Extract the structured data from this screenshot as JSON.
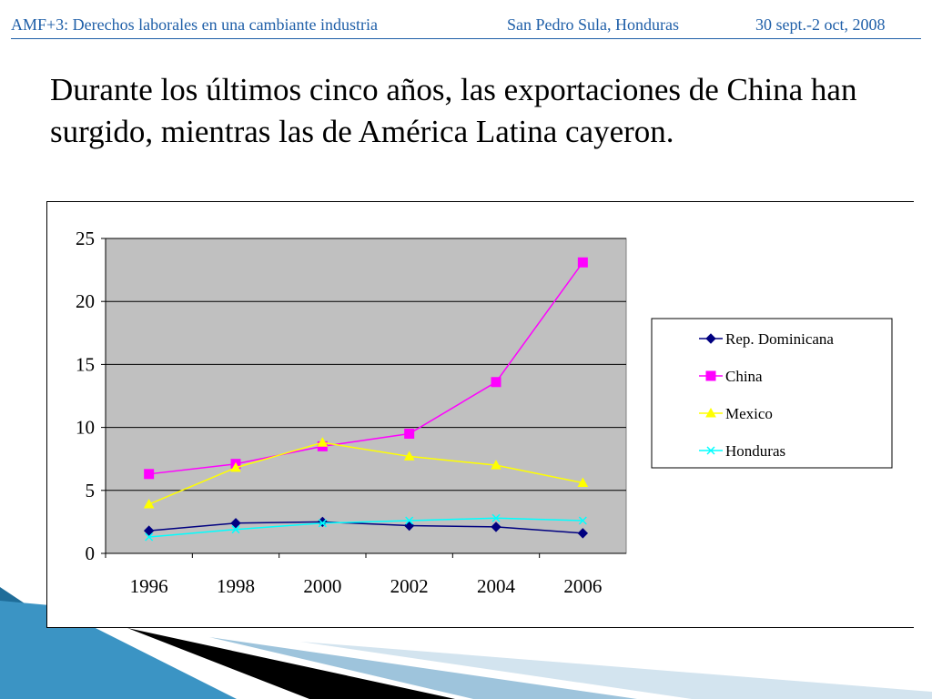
{
  "header": {
    "event": "AMF+3: Derechos laborales en una cambiante industria",
    "location": "San Pedro Sula, Honduras",
    "dates": "30 sept.-2 oct, 2008"
  },
  "headline": "Durante los últimos cinco años, las exportaciones de China han surgido, mientras las de América Latina cayeron.",
  "colors": {
    "header_text": "#1f5fa8",
    "plot_background": "#c0c0c0",
    "deco_teal": "#2a7fb0",
    "deco_black": "#000000"
  },
  "chart_data": {
    "type": "line",
    "categories": [
      "1996",
      "1998",
      "2000",
      "2002",
      "2004",
      "2006"
    ],
    "y_ticks": [
      "0",
      "5",
      "10",
      "15",
      "20",
      "25"
    ],
    "ylim": [
      0,
      25
    ],
    "grid": true,
    "legend_position": "right",
    "series": [
      {
        "name": "Rep. Dominicana",
        "color": "#000080",
        "marker": "diamond",
        "values": [
          1.8,
          2.4,
          2.5,
          2.2,
          2.1,
          1.6
        ]
      },
      {
        "name": "China",
        "color": "#ff00ff",
        "marker": "square",
        "values": [
          6.3,
          7.1,
          8.5,
          9.5,
          13.6,
          23.1
        ]
      },
      {
        "name": "Mexico",
        "color": "#ffff00",
        "marker": "triangle",
        "values": [
          3.9,
          6.8,
          8.8,
          7.7,
          7.0,
          5.6
        ]
      },
      {
        "name": "Honduras",
        "color": "#00ffff",
        "marker": "x",
        "values": [
          1.3,
          1.9,
          2.4,
          2.6,
          2.8,
          2.6
        ]
      }
    ]
  }
}
